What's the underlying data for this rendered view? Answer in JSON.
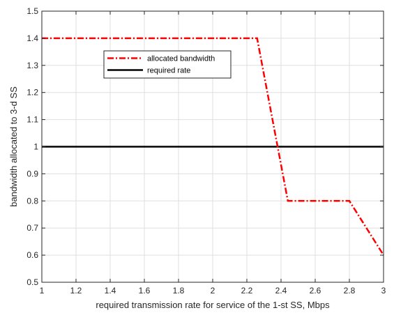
{
  "chart_data": {
    "type": "line",
    "xlabel": "required transmission rate for service of the 1-st SS, Mbps",
    "ylabel": "bandwidth allocated to 3-d SS",
    "xlim": [
      1,
      3
    ],
    "ylim": [
      0.5,
      1.5
    ],
    "xticks": [
      1,
      1.2,
      1.4,
      1.6,
      1.8,
      2,
      2.2,
      2.4,
      2.6,
      2.8,
      3
    ],
    "xtick_labels": [
      "1",
      "1.2",
      "1.4",
      "1.6",
      "1.8",
      "2",
      "2.2",
      "2.4",
      "2.6",
      "2.8",
      "3"
    ],
    "yticks": [
      0.5,
      0.6,
      0.7,
      0.8,
      0.9,
      1,
      1.1,
      1.2,
      1.3,
      1.4,
      1.5
    ],
    "ytick_labels": [
      "0.5",
      "0.6",
      "0.7",
      "0.8",
      "0.9",
      "1",
      "1.1",
      "1.2",
      "1.3",
      "1.4",
      "1.5"
    ],
    "grid": true,
    "legend_position": "upper-left inside",
    "series": [
      {
        "name": "allocated bandwidth",
        "color": "#ff0000",
        "style": "dash-dot",
        "x": [
          1,
          2.26,
          2.44,
          2.8,
          3
        ],
        "y": [
          1.4,
          1.4,
          0.8,
          0.8,
          0.6
        ]
      },
      {
        "name": "required rate",
        "color": "#000000",
        "style": "solid",
        "x": [
          1,
          3
        ],
        "y": [
          1,
          1
        ]
      }
    ]
  }
}
